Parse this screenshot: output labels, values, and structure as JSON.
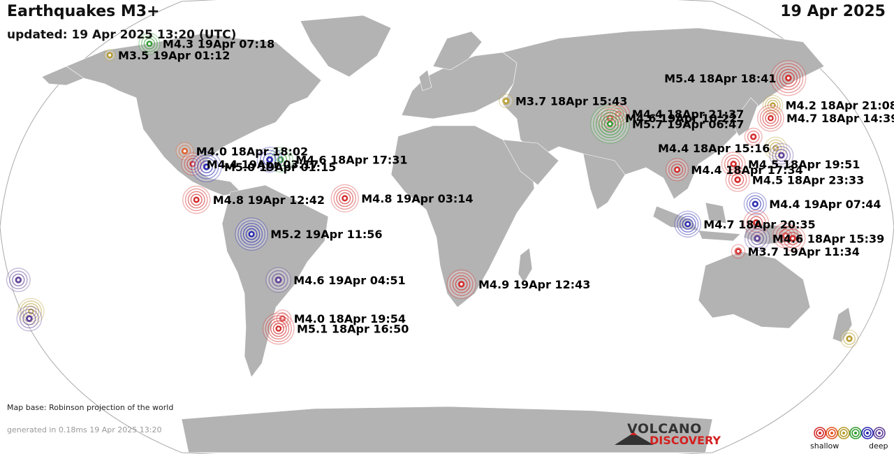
{
  "header": {
    "title": "Earthquakes M3+",
    "updated": "updated: 19 Apr 2025 13:20 (UTC)",
    "date": "19 Apr 2025"
  },
  "footer": {
    "map_base": "Map base: Robinson projection of the world",
    "generated": "generated in 0.18ms 19 Apr 2025 13:20"
  },
  "logo": {
    "line1": "VOLCANO",
    "line2": "DISCOVERY"
  },
  "legend": {
    "shallow": "shallow",
    "deep": "deep",
    "colors": [
      "#d32a2a",
      "#e2531f",
      "#b59a2a",
      "#2f9a2f",
      "#2828b0",
      "#5e3f96"
    ]
  },
  "colors": {
    "land": "#b3b3b3",
    "ocean": "#ffffff",
    "depth_shallow": "#d32a2a",
    "depth_mid1": "#e0622f",
    "depth_mid2": "#b59a2a",
    "depth_mid3": "#2f9a2f",
    "depth_deep1": "#2828b0",
    "depth_deep2": "#5e3f96"
  },
  "quakes": [
    {
      "label": "M4.3 19Apr 07:18",
      "lat": 64.5,
      "lon": -149.5,
      "mag": 4.3,
      "depth": "mid3"
    },
    {
      "label": "M3.5 19Apr 01:12",
      "lat": 60.5,
      "lon": -165.0,
      "mag": 3.5,
      "depth": "mid2"
    },
    {
      "label": "M4.0 18Apr 18:02",
      "lat": 27.0,
      "lon": -111.0,
      "mag": 4.0,
      "depth": "mid1"
    },
    {
      "label": "M4.4 19Apr 03:17",
      "lat": 22.5,
      "lon": -106.5,
      "mag": 4.4,
      "depth": "shallow"
    },
    {
      "label": "M5.0 19Apr 01:15",
      "lat": 21.5,
      "lon": -100.5,
      "mag": 5.0,
      "depth": "deep1"
    },
    {
      "label": "M4.6 18Apr 17:31",
      "lat": 24.0,
      "lon": -70.0,
      "mag": 4.6,
      "depth": "mid3"
    },
    {
      "label": "",
      "lat": 24.0,
      "lon": -74.5,
      "mag": 4.6,
      "depth": "deep1"
    },
    {
      "label": "M4.8 19Apr 12:42",
      "lat": 10.0,
      "lon": -103.0,
      "mag": 4.8,
      "depth": "shallow"
    },
    {
      "label": "M4.8 19Apr 03:14",
      "lat": 10.5,
      "lon": -42.0,
      "mag": 4.8,
      "depth": "shallow"
    },
    {
      "label": "M5.2 19Apr 11:56",
      "lat": -2.0,
      "lon": -80.0,
      "mag": 5.2,
      "depth": "deep1"
    },
    {
      "label": "M4.6 19Apr 04:51",
      "lat": -18.0,
      "lon": -70.0,
      "mag": 4.6,
      "depth": "deep2"
    },
    {
      "label": "M4.0 18Apr 19:54",
      "lat": -31.5,
      "lon": -70.5,
      "mag": 4.0,
      "depth": "shallow"
    },
    {
      "label": "M5.1 18Apr 16:50",
      "lat": -35.0,
      "lon": -73.0,
      "mag": 5.1,
      "depth": "shallow"
    },
    {
      "label": "M4.9 19Apr 12:43",
      "lat": -19.5,
      "lon": 6.0,
      "mag": 4.9,
      "depth": "shallow"
    },
    {
      "label": "M3.7 18Apr 15:43",
      "lat": 44.5,
      "lon": 26.5,
      "mag": 3.7,
      "depth": "mid2"
    },
    {
      "label": "M4.4 18Apr 21:37",
      "lat": 40.0,
      "lon": 75.5,
      "mag": 4.4,
      "depth": "shallow"
    },
    {
      "label": "M4.6 19Apr 10:22",
      "lat": 38.5,
      "lon": 71.5,
      "mag": 4.6,
      "depth": "shallow"
    },
    {
      "label": "M5.7 19Apr 06:47",
      "lat": 36.5,
      "lon": 71.0,
      "mag": 5.7,
      "depth": "mid3"
    },
    {
      "label": "M4.4 18Apr 17:34",
      "lat": 20.5,
      "lon": 96.0,
      "mag": 4.4,
      "depth": "shallow"
    },
    {
      "label": "M5.4 18Apr 18:41",
      "lat": 52.5,
      "lon": 159.5,
      "mag": 5.4,
      "depth": "shallow"
    },
    {
      "label": "M4.2 18Apr 21:08",
      "lat": 43.0,
      "lon": 145.5,
      "mag": 4.2,
      "depth": "mid2"
    },
    {
      "label": "M4.7 18Apr 14:39",
      "lat": 38.5,
      "lon": 142.0,
      "mag": 4.7,
      "depth": "shallow"
    },
    {
      "label": "",
      "lat": 32.0,
      "lon": 131.5,
      "mag": 4.0,
      "depth": "shallow"
    },
    {
      "label": "M4.4 18Apr 15:16",
      "lat": 28.0,
      "lon": 139.5,
      "mag": 4.4,
      "depth": "mid2"
    },
    {
      "label": "",
      "lat": 25.5,
      "lon": 141.0,
      "mag": 4.5,
      "depth": "deep2"
    },
    {
      "label": "M4.5 18Apr 19:51",
      "lat": 22.5,
      "lon": 120.0,
      "mag": 4.5,
      "depth": "shallow"
    },
    {
      "label": "M4.5 18Apr 23:33",
      "lat": 17.0,
      "lon": 120.5,
      "mag": 4.5,
      "depth": "shallow"
    },
    {
      "label": "M4.4 19Apr 07:44",
      "lat": 8.5,
      "lon": 126.5,
      "mag": 4.4,
      "depth": "deep1"
    },
    {
      "label": "M4.7 18Apr 20:35",
      "lat": 1.5,
      "lon": 98.5,
      "mag": 4.7,
      "depth": "deep1"
    },
    {
      "label": "",
      "lat": 2.0,
      "lon": 126.5,
      "mag": 4.6,
      "depth": "shallow"
    },
    {
      "label": "",
      "lat": -2.5,
      "lon": 138.5,
      "mag": 4.6,
      "depth": "shallow"
    },
    {
      "label": "",
      "lat": -3.5,
      "lon": 141.5,
      "mag": 4.6,
      "depth": "shallow"
    },
    {
      "label": "M4.6 18Apr 15:39",
      "lat": -3.5,
      "lon": 127.0,
      "mag": 4.6,
      "depth": "deep2"
    },
    {
      "label": "M3.7 19Apr 11:34",
      "lat": -8.0,
      "lon": 119.5,
      "mag": 3.7,
      "depth": "shallow"
    },
    {
      "label": "",
      "lat": -18.0,
      "lon": -178.0,
      "mag": 4.5,
      "depth": "deep2"
    },
    {
      "label": "",
      "lat": -29.0,
      "lon": -177.0,
      "mag": 4.7,
      "depth": "mid2"
    },
    {
      "label": "",
      "lat": -31.5,
      "lon": -179.0,
      "mag": 4.6,
      "depth": "deep2"
    },
    {
      "label": "",
      "lat": -38.5,
      "lon": 176.5,
      "mag": 4.0,
      "depth": "mid2"
    }
  ]
}
